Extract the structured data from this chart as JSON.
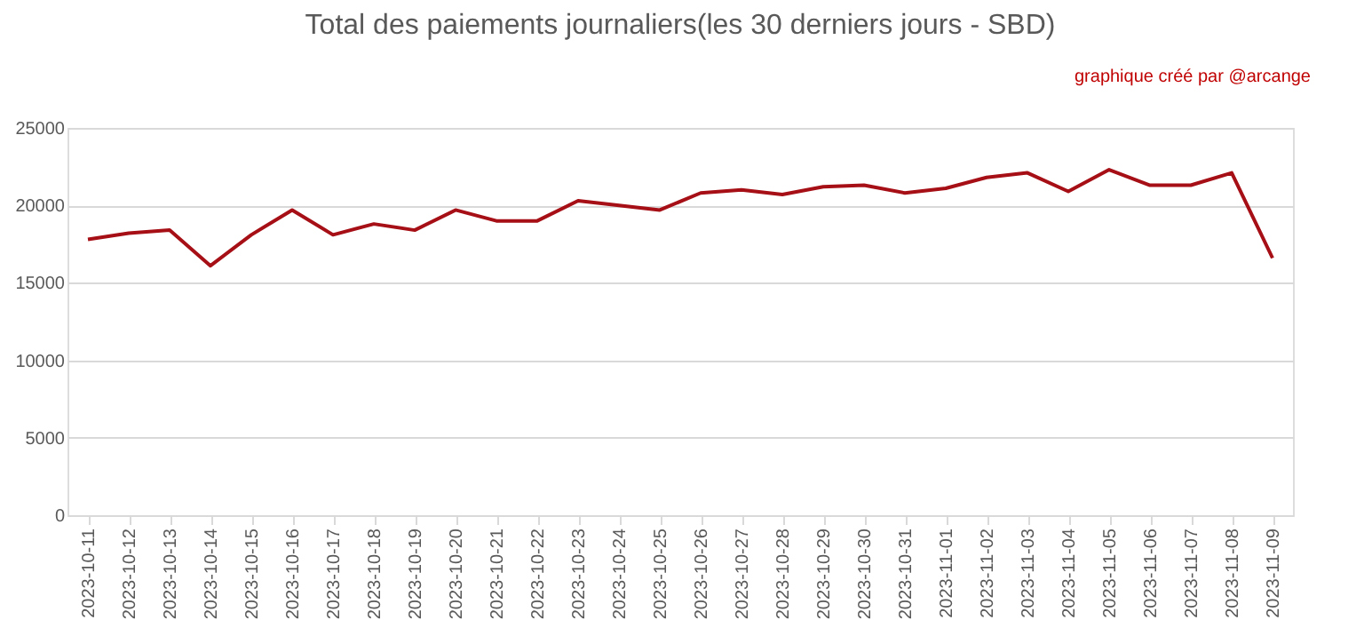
{
  "chart_data": {
    "type": "line",
    "title": "Total des paiements journaliers(les 30 derniers jours - SBD)",
    "annotations": [
      "graphique créé par @arcange"
    ],
    "categories": [
      "2023-10-11",
      "2023-10-12",
      "2023-10-13",
      "2023-10-14",
      "2023-10-15",
      "2023-10-16",
      "2023-10-17",
      "2023-10-18",
      "2023-10-19",
      "2023-10-20",
      "2023-10-21",
      "2023-10-22",
      "2023-10-23",
      "2023-10-24",
      "2023-10-25",
      "2023-10-26",
      "2023-10-27",
      "2023-10-28",
      "2023-10-29",
      "2023-10-30",
      "2023-10-31",
      "2023-11-01",
      "2023-11-02",
      "2023-11-03",
      "2023-11-04",
      "2023-11-05",
      "2023-11-06",
      "2023-11-07",
      "2023-11-08",
      "2023-11-09"
    ],
    "series": [
      {
        "color": "#a50f15",
        "values": [
          17800,
          18200,
          18400,
          16100,
          18100,
          19700,
          18100,
          18800,
          18400,
          19700,
          19000,
          19000,
          20300,
          20000,
          19700,
          20800,
          21000,
          20700,
          21200,
          21300,
          20800,
          21100,
          21800,
          22100,
          20900,
          22300,
          21300,
          21300,
          22100,
          16600
        ]
      }
    ],
    "ylim": [
      0,
      25000
    ],
    "yticks": [
      0,
      5000,
      10000,
      15000,
      20000,
      25000
    ],
    "grid": "y",
    "marker": "none",
    "line_style": "solid"
  }
}
